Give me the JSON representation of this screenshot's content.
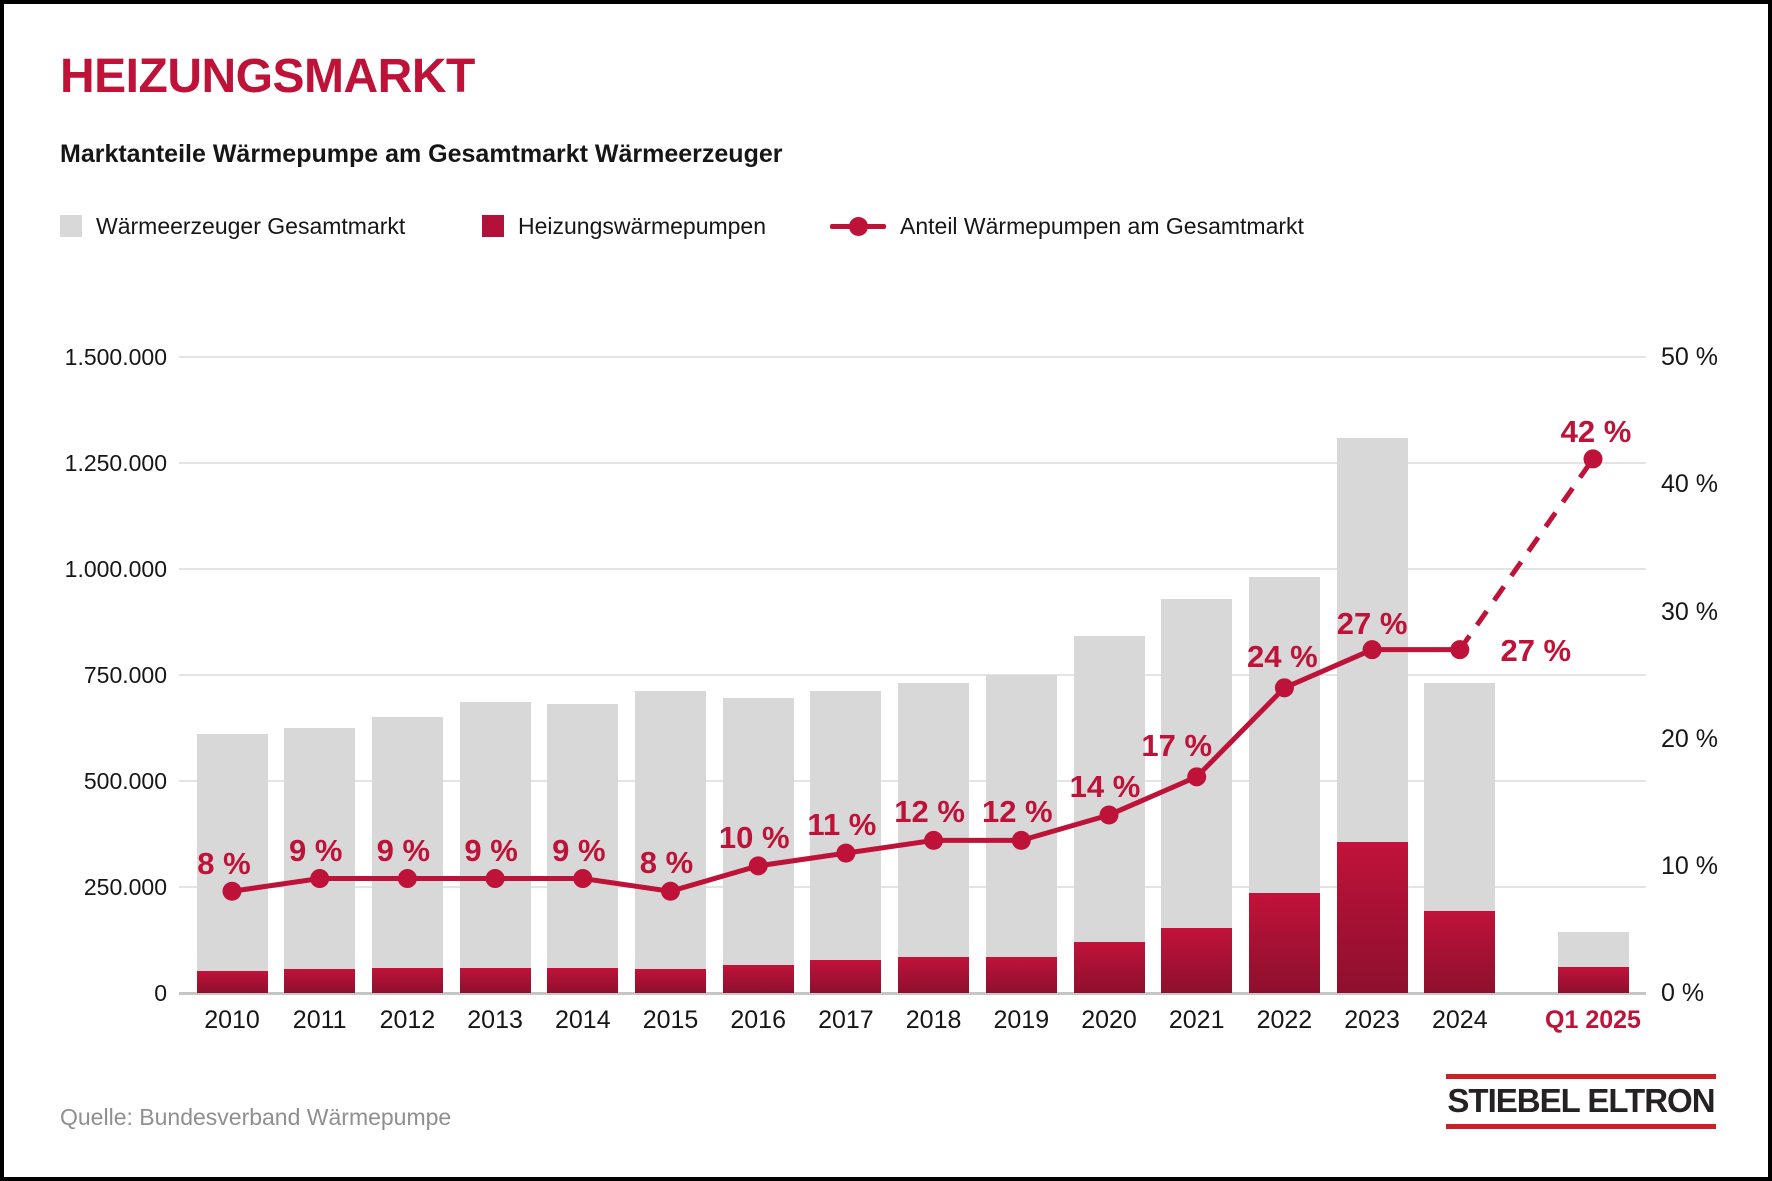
{
  "page": {
    "title": "HEIZUNGSMARKT",
    "subtitle": "Marktanteile Wärmepumpe am Gesamtmarkt Wärmeerzeuger",
    "source": "Quelle: Bundesverband Wärmepumpe",
    "logo_text": "STIEBEL ELTRON"
  },
  "legend": {
    "items": [
      {
        "label": "Wärmeerzeuger Gesamtmarkt",
        "swatch": "gray-square"
      },
      {
        "label": "Heizungswärmepumpen",
        "swatch": "red-square"
      },
      {
        "label": "Anteil Wärmepumpen am Gesamtmarkt",
        "swatch": "red-line-dot"
      }
    ]
  },
  "colors": {
    "accent_red": "#be1238",
    "heatpump_bar_top": "#c2123a",
    "heatpump_bar_bottom": "#8f0f2e",
    "total_bar_gray": "#d8d8d8",
    "gridline": "#e4e4e4",
    "axis_line": "#c6c6c6",
    "text_black": "#161616",
    "source_gray": "#8f8f8f",
    "logo_red": "#cc2027",
    "logo_text": "#262223"
  },
  "chart_data": {
    "type": "bar",
    "subtype": "grouped-overlay bars with percentage line (combo chart)",
    "categories": [
      "2010",
      "2011",
      "2012",
      "2013",
      "2014",
      "2015",
      "2016",
      "2017",
      "2018",
      "2019",
      "2020",
      "2021",
      "2022",
      "2023",
      "2024",
      "Q1 2025"
    ],
    "series": [
      {
        "name": "Wärmeerzeuger Gesamtmarkt",
        "type": "bar",
        "axis": "left",
        "color": "#d8d8d8",
        "values": [
          612000,
          626000,
          650000,
          686000,
          681000,
          712000,
          695000,
          712000,
          731000,
          751000,
          843000,
          929000,
          980000,
          1310000,
          730000,
          145000
        ]
      },
      {
        "name": "Heizungswärmepumpen",
        "type": "bar",
        "axis": "left",
        "color": "#be1238",
        "values": [
          51000,
          57000,
          59500,
          60000,
          58000,
          57000,
          66500,
          78000,
          84000,
          86000,
          120000,
          154000,
          236000,
          356000,
          193000,
          61000
        ]
      },
      {
        "name": "Anteil Wärmepumpen am Gesamtmarkt",
        "type": "line",
        "axis": "right",
        "unit": "%",
        "color": "#be1238",
        "values": [
          8,
          9,
          9,
          9,
          9,
          8,
          10,
          11,
          12,
          12,
          14,
          17,
          24,
          27,
          27,
          42
        ],
        "point_labels": [
          "8 %",
          "9 %",
          "9 %",
          "9 %",
          "9 %",
          "8 %",
          "10 %",
          "11 %",
          "12 %",
          "12 %",
          "14 %",
          "17 %",
          "24 %",
          "27 %",
          "27 %",
          "42 %"
        ],
        "dashed_from_index": 14
      }
    ],
    "left_axis": {
      "range": [
        0,
        1500000
      ],
      "ticks": [
        {
          "label": "1.500.000",
          "value": 1500000
        },
        {
          "label": "1.250.000",
          "value": 1250000
        },
        {
          "label": "1.000.000",
          "value": 1000000
        },
        {
          "label": "750.000",
          "value": 750000
        },
        {
          "label": "500.000",
          "value": 500000
        },
        {
          "label": "250.000",
          "value": 250000
        },
        {
          "label": "0",
          "value": 0
        }
      ]
    },
    "right_axis": {
      "range": [
        0,
        50
      ],
      "ticks": [
        {
          "label": "50 %",
          "value": 50
        },
        {
          "label": "40 %",
          "value": 40
        },
        {
          "label": "30 %",
          "value": 30
        },
        {
          "label": "20 %",
          "value": 20
        },
        {
          "label": "10 %",
          "value": 10
        },
        {
          "label": "0 %",
          "value": 0
        }
      ]
    },
    "grid": "horizontal, left-axis gridlines only",
    "legend_position": "top",
    "highlighted_category": "Q1 2025"
  }
}
